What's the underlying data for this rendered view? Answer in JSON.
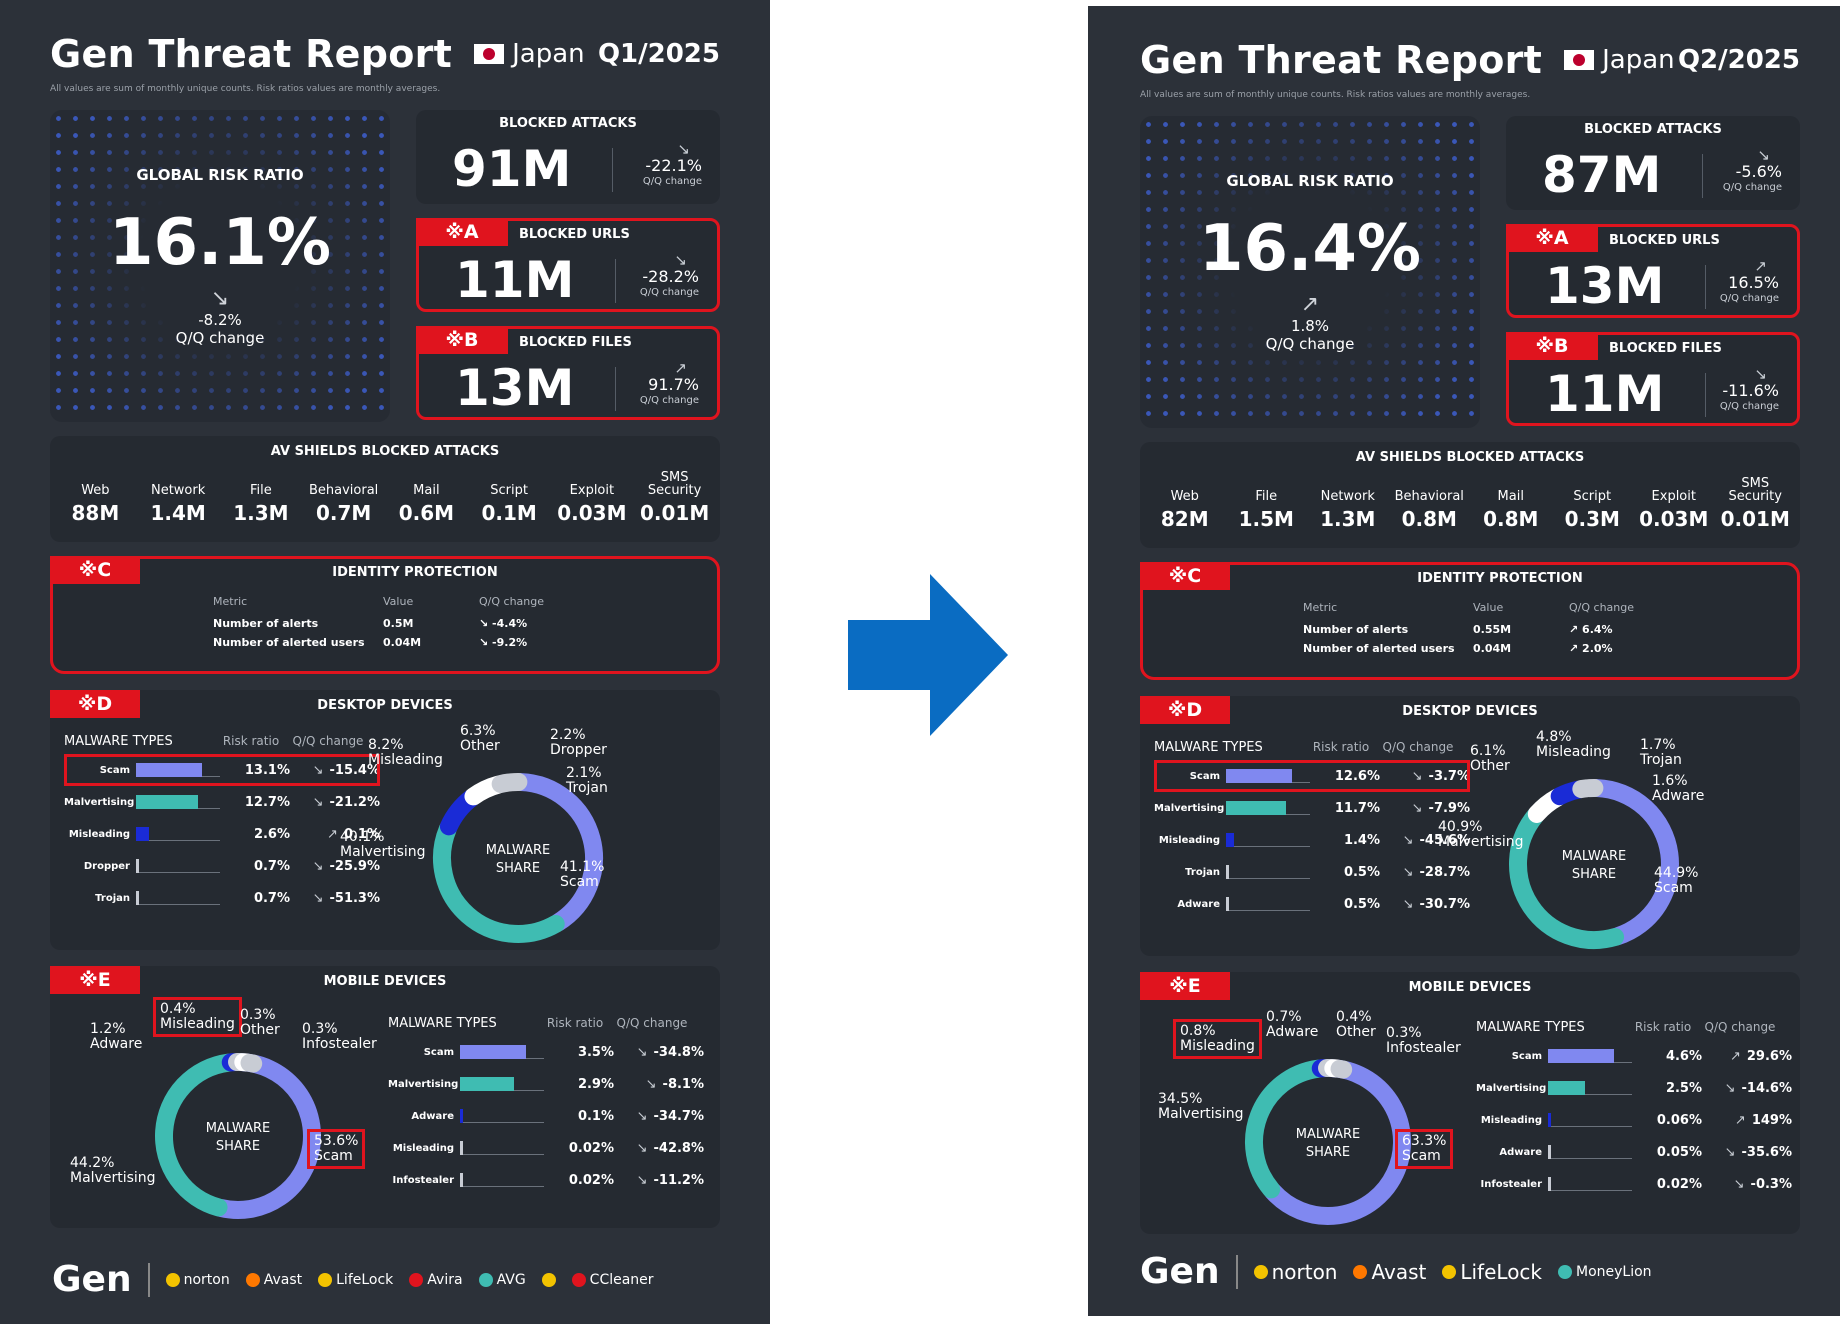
{
  "left": {
    "title": "Gen Threat Report",
    "country": "Japan",
    "quarter": "Q1/2025",
    "note": "All values are sum of monthly unique counts. Risk ratios values are monthly averages.",
    "global_risk": {
      "label": "GLOBAL RISK RATIO",
      "value": "16.1%",
      "change": "-8.2%",
      "change_label": "Q/Q change",
      "trend": "down"
    },
    "blocked_attacks": {
      "label": "BLOCKED ATTACKS",
      "value": "91M",
      "change": "-22.1%",
      "change_label": "Q/Q change",
      "trend": "down"
    },
    "blocked_urls": {
      "tag": "※A",
      "label": "BLOCKED URLS",
      "value": "11M",
      "change": "-28.2%",
      "change_label": "Q/Q change",
      "trend": "down"
    },
    "blocked_files": {
      "tag": "※B",
      "label": "BLOCKED FILES",
      "value": "13M",
      "change": "91.7%",
      "change_label": "Q/Q change",
      "trend": "up"
    },
    "av": {
      "label": "AV SHIELDS BLOCKED ATTACKS",
      "items": [
        {
          "name": "Web",
          "value": "88M"
        },
        {
          "name": "Network",
          "value": "1.4M"
        },
        {
          "name": "File",
          "value": "1.3M"
        },
        {
          "name": "Behavioral",
          "value": "0.7M"
        },
        {
          "name": "Mail",
          "value": "0.6M"
        },
        {
          "name": "Script",
          "value": "0.1M"
        },
        {
          "name": "Exploit",
          "value": "0.03M"
        },
        {
          "name": "SMS Security",
          "value": "0.01M"
        }
      ]
    },
    "identity": {
      "tag": "※C",
      "label": "IDENTITY PROTECTION",
      "h_metric": "Metric",
      "h_value": "Value",
      "h_change": "Q/Q change",
      "rows": [
        {
          "metric": "Number of alerts",
          "value": "0.5M",
          "change": "-4.4%",
          "trend": "down"
        },
        {
          "metric": "Number of alerted users",
          "value": "0.04M",
          "change": "-9.2%",
          "trend": "down"
        }
      ]
    },
    "desktop": {
      "tag": "※D",
      "label": "DESKTOP DEVICES",
      "h_types": "MALWARE TYPES",
      "h_risk": "Risk ratio",
      "h_change": "Q/Q change",
      "rows": [
        {
          "name": "Scam",
          "risk": "13.1%",
          "change": "-15.4%",
          "trend": "down",
          "frac": 0.78,
          "color": "#8088f0"
        },
        {
          "name": "Malvertising",
          "risk": "12.7%",
          "change": "-21.2%",
          "trend": "down",
          "frac": 0.74,
          "color": "#3fbcb2"
        },
        {
          "name": "Misleading",
          "risk": "2.6%",
          "change": "0.1%",
          "trend": "up",
          "frac": 0.15,
          "color": "#1a2bd6"
        },
        {
          "name": "Dropper",
          "risk": "0.7%",
          "change": "-25.9%",
          "trend": "down",
          "frac": 0.03,
          "color": "#c8ccd4"
        },
        {
          "name": "Trojan",
          "risk": "0.7%",
          "change": "-51.3%",
          "trend": "down",
          "frac": 0.03,
          "color": "#c8ccd4"
        }
      ],
      "donut_label": "MALWARE SHARE",
      "share": [
        {
          "pct": "41.1%",
          "name": "Scam",
          "v": 41.1,
          "color": "#8088f0"
        },
        {
          "pct": "40.1%",
          "name": "Malvertising",
          "v": 40.1,
          "color": "#3fbcb2"
        },
        {
          "pct": "8.2%",
          "name": "Misleading",
          "v": 8.2,
          "color": "#1a2bd6"
        },
        {
          "pct": "6.3%",
          "name": "Other",
          "v": 6.3,
          "color": "#ffffff"
        },
        {
          "pct": "2.2%",
          "name": "Dropper",
          "v": 2.2,
          "color": "#c8ccd4"
        },
        {
          "pct": "2.1%",
          "name": "Trojan",
          "v": 2.1,
          "color": "#c8ccd4"
        }
      ]
    },
    "mobile": {
      "tag": "※E",
      "label": "MOBILE DEVICES",
      "h_types": "MALWARE TYPES",
      "h_risk": "Risk ratio",
      "h_change": "Q/Q change",
      "rows": [
        {
          "name": "Scam",
          "risk": "3.5%",
          "change": "-34.8%",
          "trend": "down",
          "frac": 0.78,
          "color": "#8088f0"
        },
        {
          "name": "Malvertising",
          "risk": "2.9%",
          "change": "-8.1%",
          "trend": "down",
          "frac": 0.64,
          "color": "#3fbcb2"
        },
        {
          "name": "Adware",
          "risk": "0.1%",
          "change": "-34.7%",
          "trend": "down",
          "frac": 0.03,
          "color": "#1a2bd6"
        },
        {
          "name": "Misleading",
          "risk": "0.02%",
          "change": "-42.8%",
          "trend": "down",
          "frac": 0.01,
          "color": "#c8ccd4"
        },
        {
          "name": "Infostealer",
          "risk": "0.02%",
          "change": "-11.2%",
          "trend": "down",
          "frac": 0.01,
          "color": "#c8ccd4"
        }
      ],
      "donut_label": "MALWARE SHARE",
      "share": [
        {
          "pct": "53.6%",
          "name": "Scam",
          "v": 53.6,
          "color": "#8088f0"
        },
        {
          "pct": "44.2%",
          "name": "Malvertising",
          "v": 44.2,
          "color": "#3fbcb2"
        },
        {
          "pct": "1.2%",
          "name": "Adware",
          "v": 1.2,
          "color": "#1a2bd6"
        },
        {
          "pct": "0.4%",
          "name": "Misleading",
          "v": 0.4,
          "color": "#c8ccd4"
        },
        {
          "pct": "0.3%",
          "name": "Other",
          "v": 0.3,
          "color": "#ffffff"
        },
        {
          "pct": "0.3%",
          "name": "Infostealer",
          "v": 0.3,
          "color": "#c8ccd4"
        }
      ]
    },
    "footer": {
      "gen": "Gen",
      "brands": [
        "norton",
        "Avast",
        "LifeLock",
        "Avira",
        "AVG",
        "",
        "CCleaner"
      ]
    }
  },
  "right": {
    "title": "Gen Threat Report",
    "country": "Japan",
    "quarter": "Q2/2025",
    "note": "All values are sum of monthly unique counts. Risk ratios values are monthly averages.",
    "global_risk": {
      "label": "GLOBAL RISK RATIO",
      "value": "16.4%",
      "change": "1.8%",
      "change_label": "Q/Q change",
      "trend": "up"
    },
    "blocked_attacks": {
      "label": "BLOCKED ATTACKS",
      "value": "87M",
      "change": "-5.6%",
      "change_label": "Q/Q change",
      "trend": "down"
    },
    "blocked_urls": {
      "tag": "※A",
      "label": "BLOCKED URLS",
      "value": "13M",
      "change": "16.5%",
      "change_label": "Q/Q change",
      "trend": "up"
    },
    "blocked_files": {
      "tag": "※B",
      "label": "BLOCKED FILES",
      "value": "11M",
      "change": "-11.6%",
      "change_label": "Q/Q change",
      "trend": "down"
    },
    "av": {
      "label": "AV SHIELDS BLOCKED ATTACKS",
      "items": [
        {
          "name": "Web",
          "value": "82M"
        },
        {
          "name": "File",
          "value": "1.5M"
        },
        {
          "name": "Network",
          "value": "1.3M"
        },
        {
          "name": "Behavioral",
          "value": "0.8M"
        },
        {
          "name": "Mail",
          "value": "0.8M"
        },
        {
          "name": "Script",
          "value": "0.3M"
        },
        {
          "name": "Exploit",
          "value": "0.03M"
        },
        {
          "name": "SMS Security",
          "value": "0.01M"
        }
      ]
    },
    "identity": {
      "tag": "※C",
      "label": "IDENTITY PROTECTION",
      "h_metric": "Metric",
      "h_value": "Value",
      "h_change": "Q/Q change",
      "rows": [
        {
          "metric": "Number of alerts",
          "value": "0.55M",
          "change": "6.4%",
          "trend": "up"
        },
        {
          "metric": "Number of alerted users",
          "value": "0.04M",
          "change": "2.0%",
          "trend": "up"
        }
      ]
    },
    "desktop": {
      "tag": "※D",
      "label": "DESKTOP DEVICES",
      "h_types": "MALWARE TYPES",
      "h_risk": "Risk ratio",
      "h_change": "Q/Q change",
      "rows": [
        {
          "name": "Scam",
          "risk": "12.6%",
          "change": "-3.7%",
          "trend": "down",
          "frac": 0.78,
          "color": "#8088f0"
        },
        {
          "name": "Malvertising",
          "risk": "11.7%",
          "change": "-7.9%",
          "trend": "down",
          "frac": 0.72,
          "color": "#3fbcb2"
        },
        {
          "name": "Misleading",
          "risk": "1.4%",
          "change": "-45.6%",
          "trend": "down",
          "frac": 0.09,
          "color": "#1a2bd6"
        },
        {
          "name": "Trojan",
          "risk": "0.5%",
          "change": "-28.7%",
          "trend": "down",
          "frac": 0.03,
          "color": "#c8ccd4"
        },
        {
          "name": "Adware",
          "risk": "0.5%",
          "change": "-30.7%",
          "trend": "down",
          "frac": 0.03,
          "color": "#c8ccd4"
        }
      ],
      "donut_label": "MALWARE SHARE",
      "share": [
        {
          "pct": "44.9%",
          "name": "Scam",
          "v": 44.9,
          "color": "#8088f0"
        },
        {
          "pct": "40.9%",
          "name": "Malvertising",
          "v": 40.9,
          "color": "#3fbcb2"
        },
        {
          "pct": "6.1%",
          "name": "Other",
          "v": 6.1,
          "color": "#ffffff"
        },
        {
          "pct": "4.8%",
          "name": "Misleading",
          "v": 4.8,
          "color": "#1a2bd6"
        },
        {
          "pct": "1.7%",
          "name": "Trojan",
          "v": 1.7,
          "color": "#c8ccd4"
        },
        {
          "pct": "1.6%",
          "name": "Adware",
          "v": 1.6,
          "color": "#c8ccd4"
        }
      ]
    },
    "mobile": {
      "tag": "※E",
      "label": "MOBILE DEVICES",
      "h_types": "MALWARE TYPES",
      "h_risk": "Risk ratio",
      "h_change": "Q/Q change",
      "rows": [
        {
          "name": "Scam",
          "risk": "4.6%",
          "change": "29.6%",
          "trend": "up",
          "frac": 0.78,
          "color": "#8088f0"
        },
        {
          "name": "Malvertising",
          "risk": "2.5%",
          "change": "-14.6%",
          "trend": "down",
          "frac": 0.44,
          "color": "#3fbcb2"
        },
        {
          "name": "Misleading",
          "risk": "0.06%",
          "change": "149%",
          "trend": "up",
          "frac": 0.02,
          "color": "#1a2bd6"
        },
        {
          "name": "Adware",
          "risk": "0.05%",
          "change": "-35.6%",
          "trend": "down",
          "frac": 0.01,
          "color": "#c8ccd4"
        },
        {
          "name": "Infostealer",
          "risk": "0.02%",
          "change": "-0.3%",
          "trend": "down",
          "frac": 0.01,
          "color": "#c8ccd4"
        }
      ],
      "donut_label": "MALWARE SHARE",
      "share": [
        {
          "pct": "63.3%",
          "name": "Scam",
          "v": 63.3,
          "color": "#8088f0"
        },
        {
          "pct": "34.5%",
          "name": "Malvertising",
          "v": 34.5,
          "color": "#3fbcb2"
        },
        {
          "pct": "0.8%",
          "name": "Misleading",
          "v": 0.8,
          "color": "#1a2bd6"
        },
        {
          "pct": "0.7%",
          "name": "Adware",
          "v": 0.7,
          "color": "#c8ccd4"
        },
        {
          "pct": "0.4%",
          "name": "Other",
          "v": 0.4,
          "color": "#ffffff"
        },
        {
          "pct": "0.3%",
          "name": "Infostealer",
          "v": 0.3,
          "color": "#c8ccd4"
        }
      ]
    },
    "footer": {
      "gen": "Gen",
      "brands": [
        "norton",
        "Avast",
        "LifeLock",
        "MoneyLion"
      ]
    }
  },
  "colors": {
    "panel_bg": "#2c3139",
    "highlight": "#e0141e",
    "arrow": "#0a6cc2",
    "scam": "#8088f0",
    "malvertising": "#3fbcb2",
    "misleading": "#1a2bd6"
  }
}
